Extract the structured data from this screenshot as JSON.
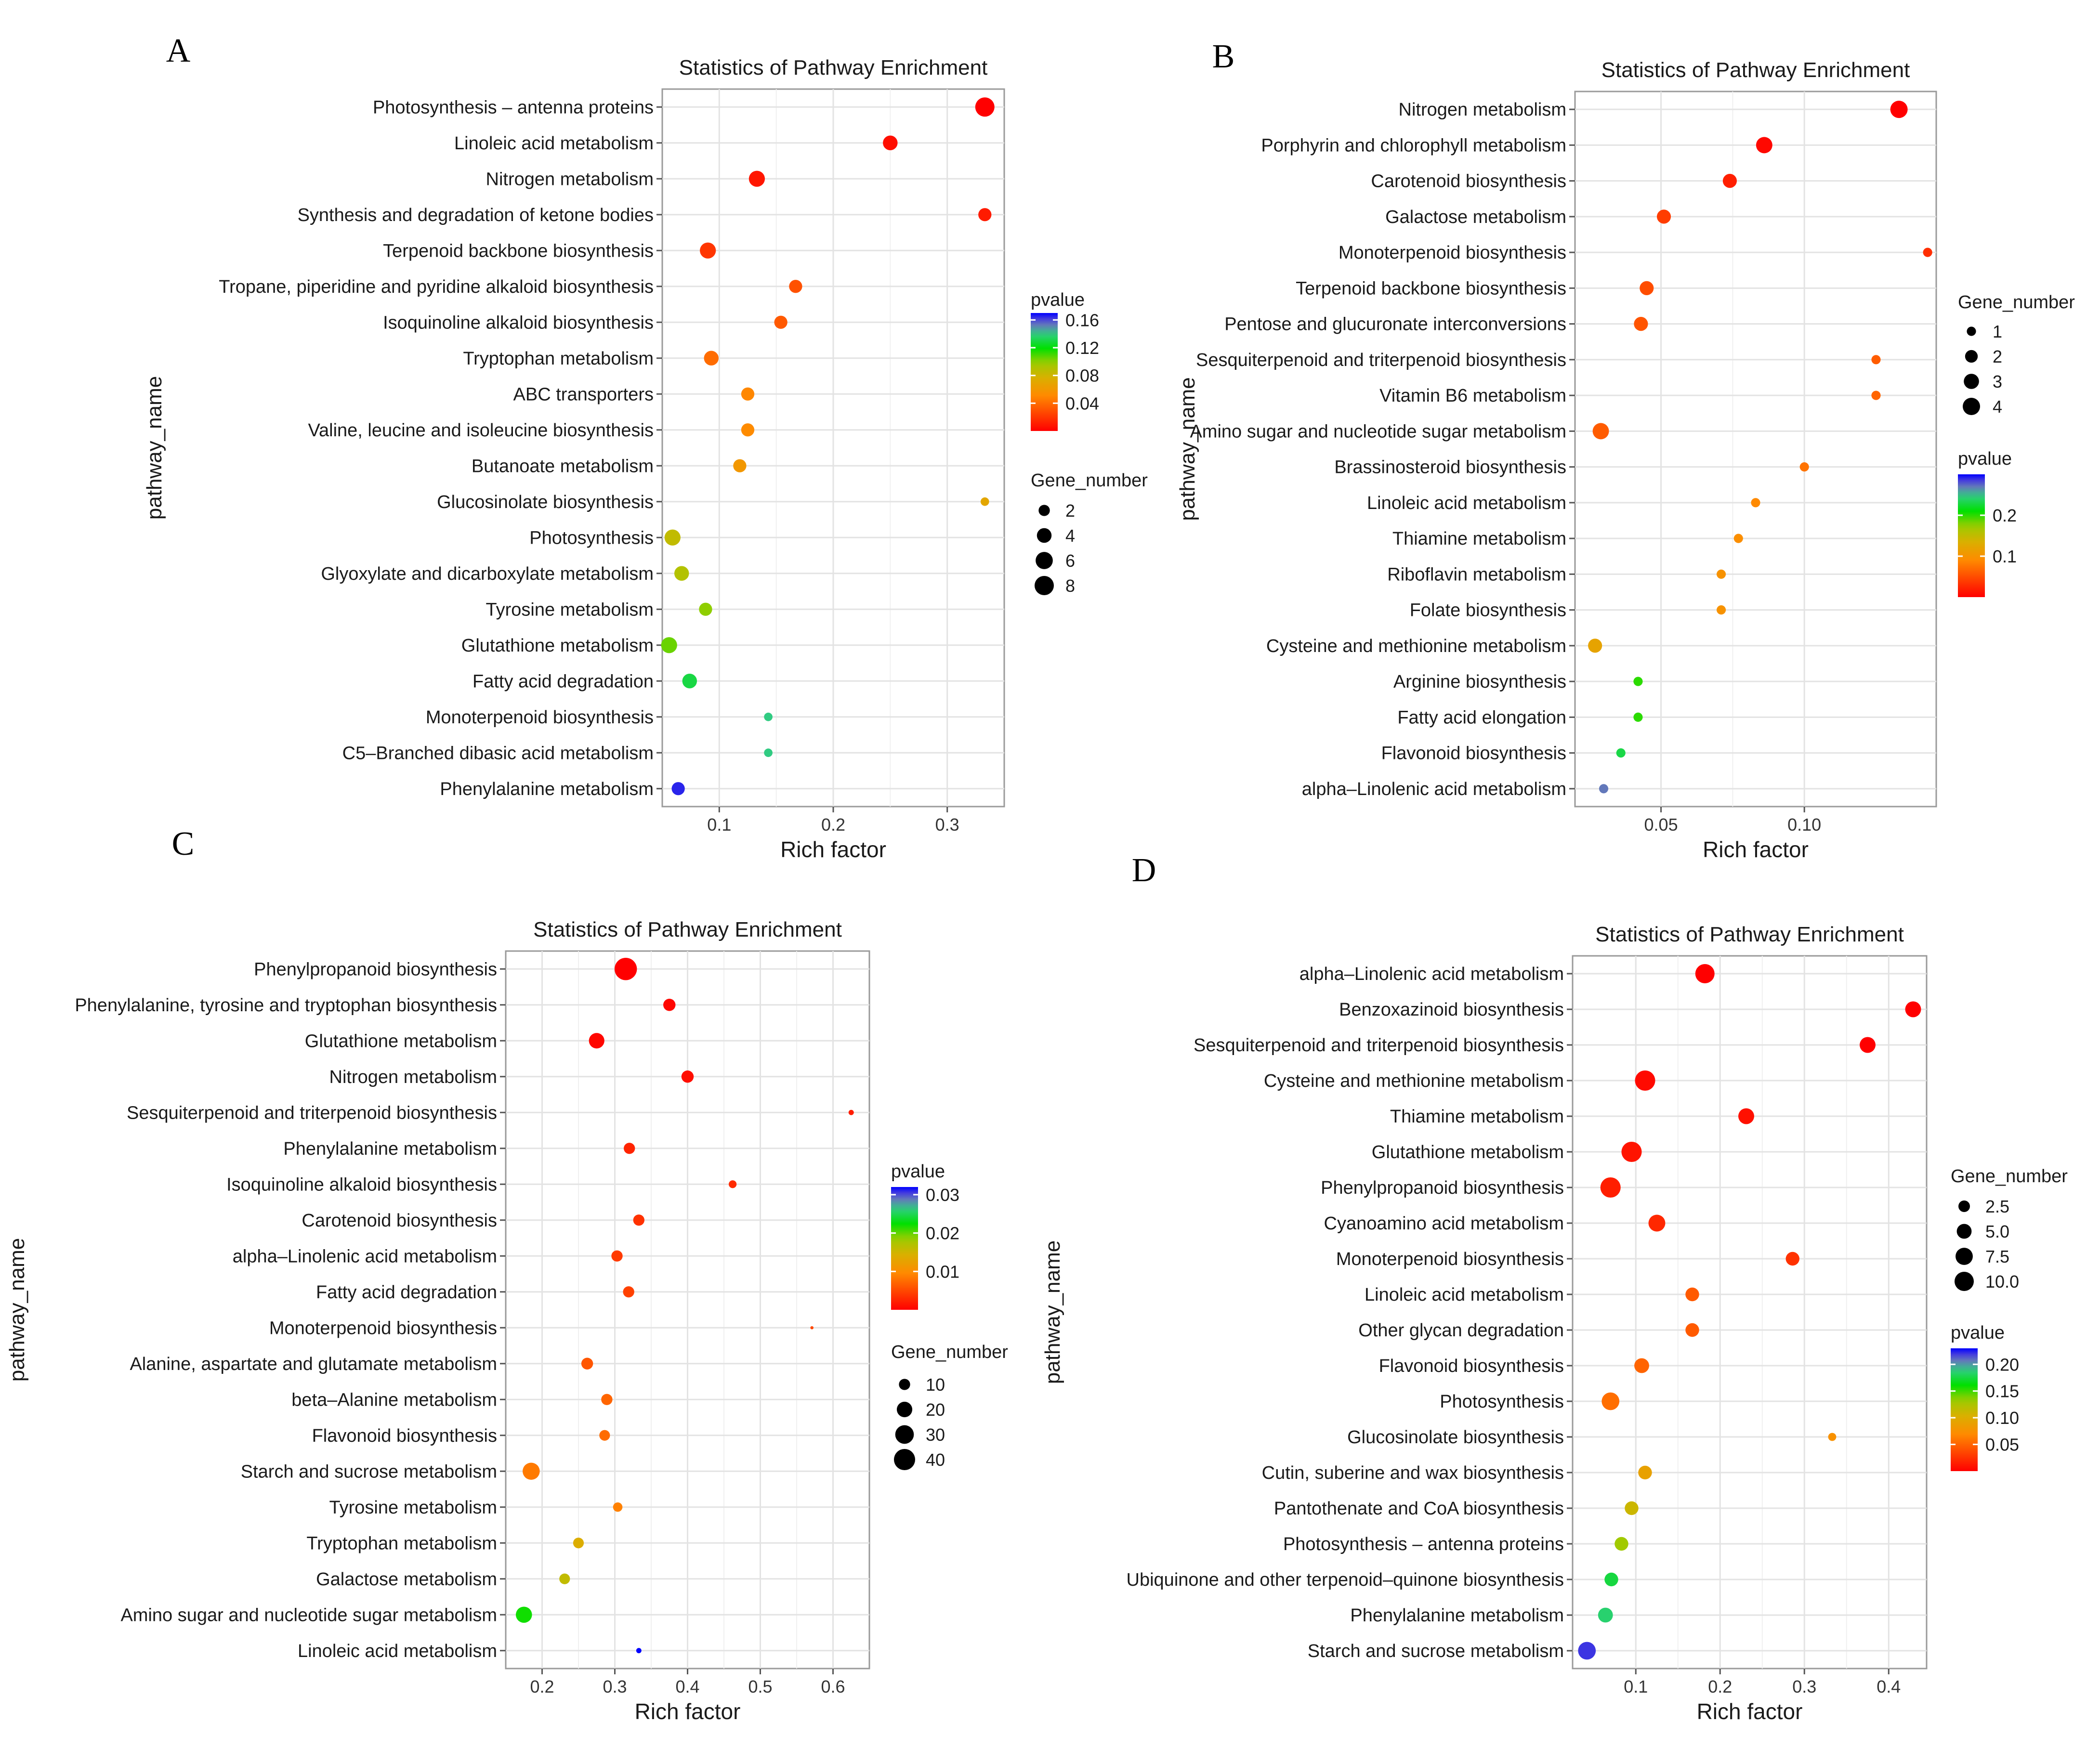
{
  "panels": [
    {
      "letter": "A",
      "title": "Statistics of Pathway Enrichment",
      "xlabel": "Rich factor",
      "ylabel": "pathway_name",
      "xlim": [
        0.05,
        0.35
      ],
      "xticks": [
        0.1,
        0.2,
        0.3
      ],
      "xtick_labels": [
        "0.1",
        "0.2",
        "0.3"
      ],
      "pvalue_legend": {
        "title": "pvalue",
        "range": [
          0.0,
          0.17
        ],
        "ticks": [
          0.16,
          0.12,
          0.08,
          0.04
        ],
        "labels": [
          "0.16",
          "0.12",
          "0.08",
          "0.04"
        ]
      },
      "size_legend": {
        "title": "Gene_number",
        "values": [
          2,
          4,
          6,
          8
        ],
        "labels": [
          "2",
          "4",
          "6",
          "8"
        ]
      },
      "colors": [
        "#0000ff",
        "#6f62c9",
        "#2ecf7f",
        "#00e000",
        "#9acd00",
        "#d9b000",
        "#ff8a00",
        "#ff4500",
        "#ff0000"
      ]
    },
    {
      "letter": "B",
      "title": "Statistics of Pathway Enrichment",
      "xlabel": "Rich factor",
      "ylabel": "pathway_name",
      "xlim": [
        0.02,
        0.146
      ],
      "xticks": [
        0.05,
        0.1
      ],
      "xtick_labels": [
        "0.05",
        "0.10"
      ],
      "pvalue_legend": {
        "title": "pvalue",
        "range": [
          0.0,
          0.3
        ],
        "ticks": [
          0.2,
          0.1
        ],
        "labels": [
          "0.2",
          "0.1"
        ]
      },
      "size_legend": {
        "title": "Gene_number",
        "values": [
          1,
          2,
          3,
          4
        ],
        "labels": [
          "1",
          "2",
          "3",
          "4"
        ]
      },
      "colors": [
        "#0000ff",
        "#6f62c9",
        "#2ecf7f",
        "#00e000",
        "#9acd00",
        "#d9b000",
        "#ff8a00",
        "#ff4500",
        "#ff0000"
      ]
    },
    {
      "letter": "C",
      "title": "Statistics of Pathway Enrichment",
      "xlabel": "Rich factor",
      "ylabel": "pathway_name",
      "xlim": [
        0.15,
        0.65
      ],
      "xticks": [
        0.2,
        0.3,
        0.4,
        0.5,
        0.6
      ],
      "xtick_labels": [
        "0.2",
        "0.3",
        "0.4",
        "0.5",
        "0.6"
      ],
      "pvalue_legend": {
        "title": "pvalue",
        "range": [
          0.0,
          0.032
        ],
        "ticks": [
          0.03,
          0.02,
          0.01
        ],
        "labels": [
          "0.03",
          "0.02",
          "0.01"
        ]
      },
      "size_legend": {
        "title": "Gene_number",
        "values": [
          10,
          20,
          30,
          40
        ],
        "labels": [
          "10",
          "20",
          "30",
          "40"
        ]
      },
      "colors": [
        "#0000ff",
        "#6f62c9",
        "#2ecf7f",
        "#00e000",
        "#9acd00",
        "#d9b000",
        "#ff8a00",
        "#ff4500",
        "#ff0000"
      ]
    },
    {
      "letter": "D",
      "title": "Statistics of Pathway Enrichment",
      "xlabel": "Rich factor",
      "ylabel": "pathway_name",
      "xlim": [
        0.025,
        0.445
      ],
      "xticks": [
        0.1,
        0.2,
        0.3,
        0.4
      ],
      "xtick_labels": [
        "0.1",
        "0.2",
        "0.3",
        "0.4"
      ],
      "pvalue_legend": {
        "title": "pvalue",
        "range": [
          0.0,
          0.23
        ],
        "ticks": [
          0.2,
          0.15,
          0.1,
          0.05
        ],
        "labels": [
          "0.20",
          "0.15",
          "0.10",
          "0.05"
        ]
      },
      "size_legend": {
        "title": "Gene_number",
        "values": [
          2.5,
          5.0,
          7.5,
          10.0
        ],
        "labels": [
          "2.5",
          "5.0",
          "7.5",
          "10.0"
        ]
      },
      "colors": [
        "#0000ff",
        "#6f62c9",
        "#2ecf7f",
        "#00e000",
        "#9acd00",
        "#d9b000",
        "#ff8a00",
        "#ff4500",
        "#ff0000"
      ]
    }
  ],
  "chart_data": [
    {
      "type": "scatter",
      "title": "Statistics of Pathway Enrichment",
      "xlabel": "Rich factor",
      "ylabel": "pathway_name",
      "color_by": "pvalue",
      "size_by": "Gene_number",
      "points": [
        {
          "pathway": "Photosynthesis – antenna proteins",
          "rich_factor": 0.333,
          "pvalue": 0.0,
          "gene_number": 8
        },
        {
          "pathway": "Linoleic acid metabolism",
          "rich_factor": 0.25,
          "pvalue": 0.005,
          "gene_number": 4
        },
        {
          "pathway": "Nitrogen metabolism",
          "rich_factor": 0.133,
          "pvalue": 0.008,
          "gene_number": 5
        },
        {
          "pathway": "Synthesis and degradation of ketone bodies",
          "rich_factor": 0.333,
          "pvalue": 0.01,
          "gene_number": 3
        },
        {
          "pathway": "Terpenoid backbone biosynthesis",
          "rich_factor": 0.09,
          "pvalue": 0.02,
          "gene_number": 5
        },
        {
          "pathway": "Tropane, piperidine and pyridine alkaloid biosynthesis",
          "rich_factor": 0.167,
          "pvalue": 0.03,
          "gene_number": 3
        },
        {
          "pathway": "Isoquinoline alkaloid biosynthesis",
          "rich_factor": 0.154,
          "pvalue": 0.033,
          "gene_number": 3
        },
        {
          "pathway": "Tryptophan metabolism",
          "rich_factor": 0.093,
          "pvalue": 0.04,
          "gene_number": 4
        },
        {
          "pathway": "ABC transporters",
          "rich_factor": 0.125,
          "pvalue": 0.05,
          "gene_number": 3
        },
        {
          "pathway": "Valine, leucine and isoleucine biosynthesis",
          "rich_factor": 0.125,
          "pvalue": 0.052,
          "gene_number": 3
        },
        {
          "pathway": "Butanoate metabolism",
          "rich_factor": 0.118,
          "pvalue": 0.06,
          "gene_number": 3
        },
        {
          "pathway": "Glucosinolate biosynthesis",
          "rich_factor": 0.333,
          "pvalue": 0.07,
          "gene_number": 1
        },
        {
          "pathway": "Photosynthesis",
          "rich_factor": 0.059,
          "pvalue": 0.085,
          "gene_number": 5
        },
        {
          "pathway": "Glyoxylate and dicarboxylate metabolism",
          "rich_factor": 0.067,
          "pvalue": 0.09,
          "gene_number": 4
        },
        {
          "pathway": "Tyrosine metabolism",
          "rich_factor": 0.088,
          "pvalue": 0.1,
          "gene_number": 3
        },
        {
          "pathway": "Glutathione metabolism",
          "rich_factor": 0.056,
          "pvalue": 0.105,
          "gene_number": 5
        },
        {
          "pathway": "Fatty acid degradation",
          "rich_factor": 0.074,
          "pvalue": 0.13,
          "gene_number": 4
        },
        {
          "pathway": "Monoterpenoid biosynthesis",
          "rich_factor": 0.143,
          "pvalue": 0.14,
          "gene_number": 1
        },
        {
          "pathway": "C5–Branched dibasic acid metabolism",
          "rich_factor": 0.143,
          "pvalue": 0.14,
          "gene_number": 1
        },
        {
          "pathway": "Phenylalanine metabolism",
          "rich_factor": 0.064,
          "pvalue": 0.165,
          "gene_number": 3
        }
      ]
    },
    {
      "type": "scatter",
      "title": "Statistics of Pathway Enrichment",
      "xlabel": "Rich factor",
      "ylabel": "pathway_name",
      "color_by": "pvalue",
      "size_by": "Gene_number",
      "points": [
        {
          "pathway": "Nitrogen metabolism",
          "rich_factor": 0.133,
          "pvalue": 0.0,
          "gene_number": 4
        },
        {
          "pathway": "Porphyrin and chlorophyll metabolism",
          "rich_factor": 0.086,
          "pvalue": 0.005,
          "gene_number": 3.5
        },
        {
          "pathway": "Carotenoid biosynthesis",
          "rich_factor": 0.074,
          "pvalue": 0.02,
          "gene_number": 2.5
        },
        {
          "pathway": "Galactose metabolism",
          "rich_factor": 0.051,
          "pvalue": 0.04,
          "gene_number": 2.5
        },
        {
          "pathway": "Monoterpenoid biosynthesis",
          "rich_factor": 0.143,
          "pvalue": 0.03,
          "gene_number": 1
        },
        {
          "pathway": "Terpenoid backbone biosynthesis",
          "rich_factor": 0.045,
          "pvalue": 0.05,
          "gene_number": 2.5
        },
        {
          "pathway": "Pentose and glucuronate interconversions",
          "rich_factor": 0.043,
          "pvalue": 0.055,
          "gene_number": 2.5
        },
        {
          "pathway": "Sesquiterpenoid and triterpenoid biosynthesis",
          "rich_factor": 0.125,
          "pvalue": 0.06,
          "gene_number": 1
        },
        {
          "pathway": "Vitamin B6 metabolism",
          "rich_factor": 0.125,
          "pvalue": 0.065,
          "gene_number": 1
        },
        {
          "pathway": "Amino sugar and nucleotide sugar metabolism",
          "rich_factor": 0.029,
          "pvalue": 0.06,
          "gene_number": 3.5
        },
        {
          "pathway": "Brassinosteroid biosynthesis",
          "rich_factor": 0.1,
          "pvalue": 0.075,
          "gene_number": 1
        },
        {
          "pathway": "Linoleic acid metabolism",
          "rich_factor": 0.083,
          "pvalue": 0.09,
          "gene_number": 1
        },
        {
          "pathway": "Thiamine metabolism",
          "rich_factor": 0.077,
          "pvalue": 0.095,
          "gene_number": 1
        },
        {
          "pathway": "Riboflavin metabolism",
          "rich_factor": 0.071,
          "pvalue": 0.1,
          "gene_number": 1
        },
        {
          "pathway": "Folate biosynthesis",
          "rich_factor": 0.071,
          "pvalue": 0.1,
          "gene_number": 1
        },
        {
          "pathway": "Cysteine and methionine metabolism",
          "rich_factor": 0.027,
          "pvalue": 0.12,
          "gene_number": 2.5
        },
        {
          "pathway": "Arginine biosynthesis",
          "rich_factor": 0.042,
          "pvalue": 0.2,
          "gene_number": 1
        },
        {
          "pathway": "Fatty acid elongation",
          "rich_factor": 0.042,
          "pvalue": 0.2,
          "gene_number": 1
        },
        {
          "pathway": "Flavonoid biosynthesis",
          "rich_factor": 0.036,
          "pvalue": 0.23,
          "gene_number": 1
        },
        {
          "pathway": "alpha–Linolenic acid metabolism",
          "rich_factor": 0.03,
          "pvalue": 0.27,
          "gene_number": 1
        }
      ]
    },
    {
      "type": "scatter",
      "title": "Statistics of Pathway Enrichment",
      "xlabel": "Rich factor",
      "ylabel": "pathway_name",
      "color_by": "pvalue",
      "size_by": "Gene_number",
      "points": [
        {
          "pathway": "Phenylpropanoid biosynthesis",
          "rich_factor": 0.315,
          "pvalue": 0.0,
          "gene_number": 45
        },
        {
          "pathway": "Phenylalanine, tyrosine and tryptophan biosynthesis",
          "rich_factor": 0.375,
          "pvalue": 0.0005,
          "gene_number": 12
        },
        {
          "pathway": "Glutathione metabolism",
          "rich_factor": 0.275,
          "pvalue": 0.0005,
          "gene_number": 20
        },
        {
          "pathway": "Nitrogen metabolism",
          "rich_factor": 0.4,
          "pvalue": 0.001,
          "gene_number": 12
        },
        {
          "pathway": "Sesquiterpenoid and triterpenoid biosynthesis",
          "rich_factor": 0.625,
          "pvalue": 0.002,
          "gene_number": 3
        },
        {
          "pathway": "Phenylalanine metabolism",
          "rich_factor": 0.32,
          "pvalue": 0.0025,
          "gene_number": 10
        },
        {
          "pathway": "Isoquinoline alkaloid biosynthesis",
          "rich_factor": 0.462,
          "pvalue": 0.003,
          "gene_number": 5
        },
        {
          "pathway": "Carotenoid biosynthesis",
          "rich_factor": 0.333,
          "pvalue": 0.0035,
          "gene_number": 10
        },
        {
          "pathway": "alpha–Linolenic acid metabolism",
          "rich_factor": 0.303,
          "pvalue": 0.004,
          "gene_number": 10
        },
        {
          "pathway": "Fatty acid degradation",
          "rich_factor": 0.319,
          "pvalue": 0.0045,
          "gene_number": 10
        },
        {
          "pathway": "Monoterpenoid biosynthesis",
          "rich_factor": 0.571,
          "pvalue": 0.005,
          "gene_number": 2
        },
        {
          "pathway": "Alanine, aspartate and glutamate metabolism",
          "rich_factor": 0.262,
          "pvalue": 0.006,
          "gene_number": 11
        },
        {
          "pathway": "beta–Alanine metabolism",
          "rich_factor": 0.289,
          "pvalue": 0.007,
          "gene_number": 10
        },
        {
          "pathway": "Flavonoid biosynthesis",
          "rich_factor": 0.286,
          "pvalue": 0.0075,
          "gene_number": 9
        },
        {
          "pathway": "Starch and sucrose metabolism",
          "rich_factor": 0.185,
          "pvalue": 0.0085,
          "gene_number": 25
        },
        {
          "pathway": "Tyrosine metabolism",
          "rich_factor": 0.304,
          "pvalue": 0.009,
          "gene_number": 7
        },
        {
          "pathway": "Tryptophan metabolism",
          "rich_factor": 0.25,
          "pvalue": 0.014,
          "gene_number": 9
        },
        {
          "pathway": "Galactose metabolism",
          "rich_factor": 0.231,
          "pvalue": 0.016,
          "gene_number": 9
        },
        {
          "pathway": "Amino sugar and nucleotide sugar metabolism",
          "rich_factor": 0.175,
          "pvalue": 0.022,
          "gene_number": 22
        },
        {
          "pathway": "Linoleic acid metabolism",
          "rich_factor": 0.333,
          "pvalue": 0.032,
          "gene_number": 3
        }
      ]
    },
    {
      "type": "scatter",
      "title": "Statistics of Pathway Enrichment",
      "xlabel": "Rich factor",
      "ylabel": "pathway_name",
      "color_by": "pvalue",
      "size_by": "Gene_number",
      "points": [
        {
          "pathway": "alpha–Linolenic acid metabolism",
          "rich_factor": 0.182,
          "pvalue": 0.0,
          "gene_number": 10
        },
        {
          "pathway": "Benzoxazinoid biosynthesis",
          "rich_factor": 0.429,
          "pvalue": 0.0,
          "gene_number": 6
        },
        {
          "pathway": "Sesquiterpenoid and triterpenoid biosynthesis",
          "rich_factor": 0.375,
          "pvalue": 0.0,
          "gene_number": 6
        },
        {
          "pathway": "Cysteine and methionine metabolism",
          "rich_factor": 0.111,
          "pvalue": 0.005,
          "gene_number": 12
        },
        {
          "pathway": "Thiamine metabolism",
          "rich_factor": 0.231,
          "pvalue": 0.008,
          "gene_number": 6
        },
        {
          "pathway": "Glutathione metabolism",
          "rich_factor": 0.095,
          "pvalue": 0.01,
          "gene_number": 12
        },
        {
          "pathway": "Phenylpropanoid biosynthesis",
          "rich_factor": 0.07,
          "pvalue": 0.015,
          "gene_number": 14
        },
        {
          "pathway": "Cyanoamino acid metabolism",
          "rich_factor": 0.125,
          "pvalue": 0.02,
          "gene_number": 7
        },
        {
          "pathway": "Monoterpenoid biosynthesis",
          "rich_factor": 0.286,
          "pvalue": 0.025,
          "gene_number": 4
        },
        {
          "pathway": "Linoleic acid metabolism",
          "rich_factor": 0.167,
          "pvalue": 0.045,
          "gene_number": 4
        },
        {
          "pathway": "Other glycan degradation",
          "rich_factor": 0.167,
          "pvalue": 0.045,
          "gene_number": 4
        },
        {
          "pathway": "Flavonoid biosynthesis",
          "rich_factor": 0.107,
          "pvalue": 0.05,
          "gene_number": 5
        },
        {
          "pathway": "Photosynthesis",
          "rich_factor": 0.07,
          "pvalue": 0.055,
          "gene_number": 8
        },
        {
          "pathway": "Glucosinolate biosynthesis",
          "rich_factor": 0.333,
          "pvalue": 0.075,
          "gene_number": 1
        },
        {
          "pathway": "Cutin, suberine and wax biosynthesis",
          "rich_factor": 0.111,
          "pvalue": 0.09,
          "gene_number": 4
        },
        {
          "pathway": "Pantothenate and CoA biosynthesis",
          "rich_factor": 0.095,
          "pvalue": 0.11,
          "gene_number": 4
        },
        {
          "pathway": "Photosynthesis – antenna proteins",
          "rich_factor": 0.083,
          "pvalue": 0.13,
          "gene_number": 4
        },
        {
          "pathway": "Ubiquinone and other terpenoid–quinone biosynthesis",
          "rich_factor": 0.071,
          "pvalue": 0.175,
          "gene_number": 4
        },
        {
          "pathway": "Phenylalanine metabolism",
          "rich_factor": 0.064,
          "pvalue": 0.185,
          "gene_number": 5
        },
        {
          "pathway": "Starch and sucrose metabolism",
          "rich_factor": 0.042,
          "pvalue": 0.22,
          "gene_number": 8
        }
      ]
    }
  ]
}
